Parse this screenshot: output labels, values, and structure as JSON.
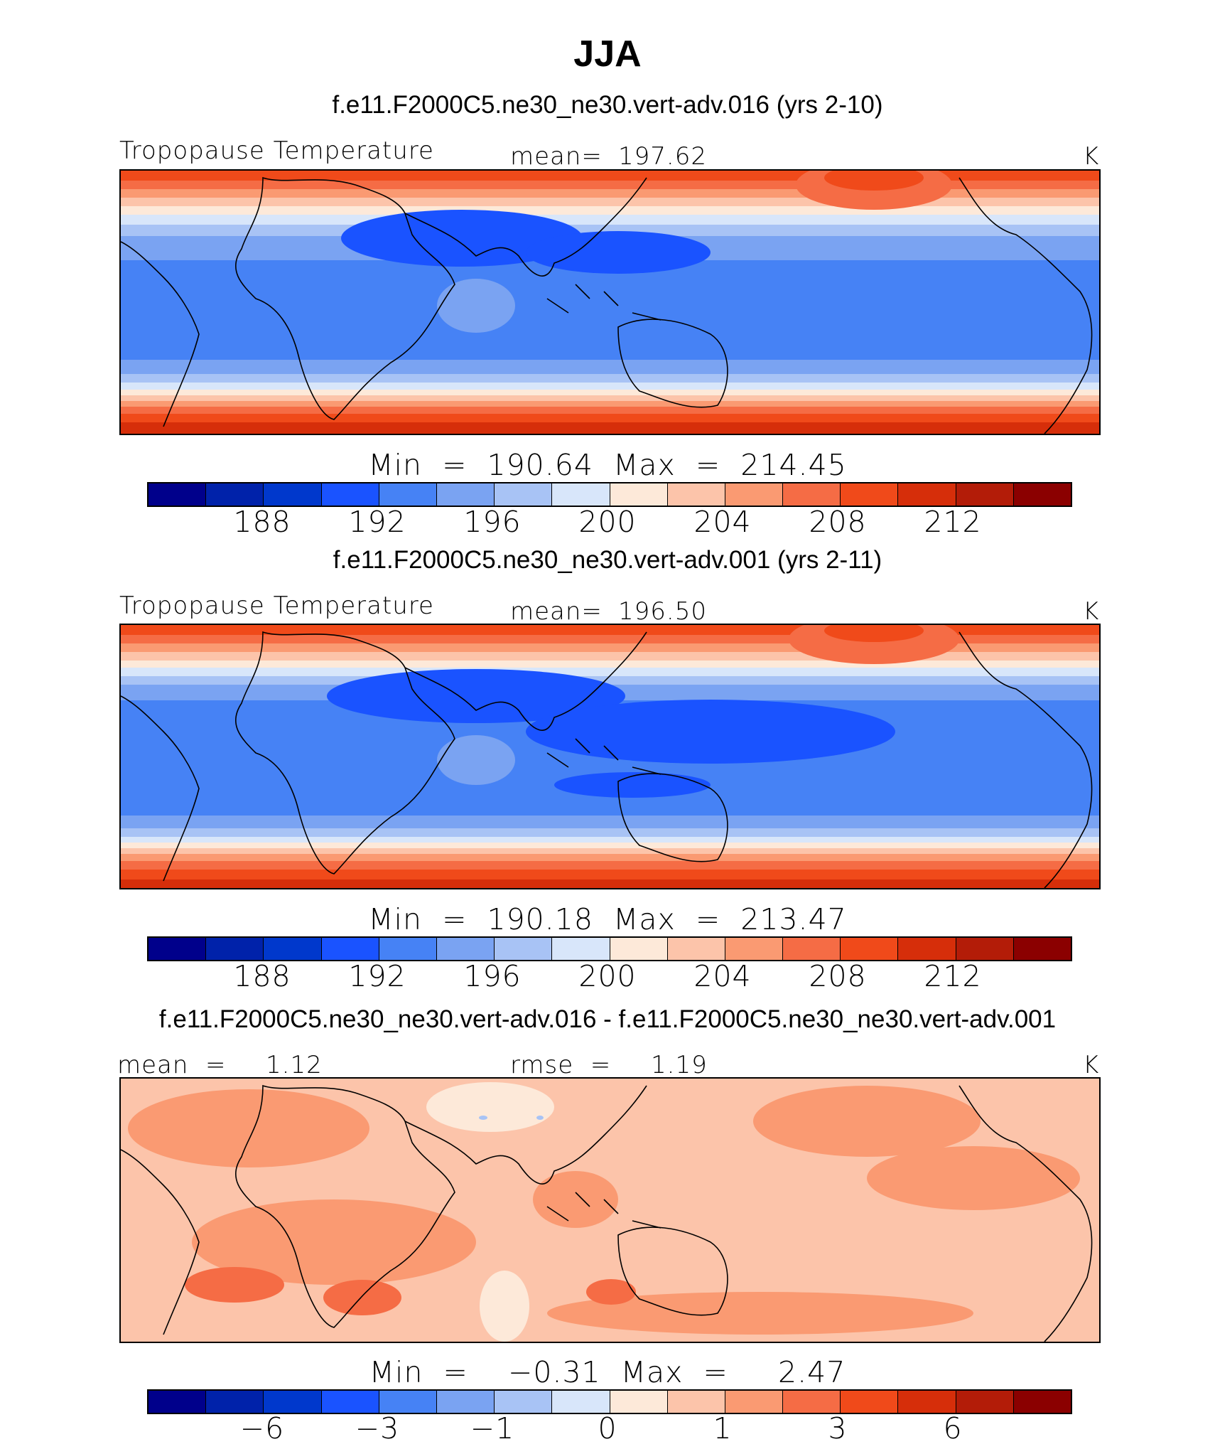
{
  "title": "JJA",
  "units": "K",
  "colorbar_colors": [
    "#00008b",
    "#0022aa",
    "#0038cc",
    "#1a53ff",
    "#4682f5",
    "#7aa3f2",
    "#a8c3f5",
    "#d8e6fa",
    "#fde9d9",
    "#fcc4aa",
    "#fa9a72",
    "#f56c45",
    "#f04a1a",
    "#d62e0a",
    "#b31c08",
    "#8b0000"
  ],
  "panels": [
    {
      "case": "f.e11.F2000C5.ne30_ne30.vert-adv.016 (yrs 2-10)",
      "variable": "Tropopause Temperature",
      "stat_label": "mean=",
      "stat_value": "197.62",
      "units": "K",
      "minmax": "Min  =  190.64  Max  =  214.45",
      "tick_labels": [
        "188",
        "192",
        "196",
        "200",
        "204",
        "208",
        "212"
      ],
      "center_contour": 194
    },
    {
      "case": "f.e11.F2000C5.ne30_ne30.vert-adv.001 (yrs 2-11)",
      "variable": "Tropopause Temperature",
      "stat_label": "mean=",
      "stat_value": "196.50",
      "units": "K",
      "minmax": "Min  =  190.18  Max  =  213.47",
      "tick_labels": [
        "188",
        "192",
        "196",
        "200",
        "204",
        "208",
        "212"
      ],
      "center_contour": 192
    },
    {
      "case": "f.e11.F2000C5.ne30_ne30.vert-adv.016 - f.e11.F2000C5.ne30_ne30.vert-adv.001",
      "left_label": "mean  =",
      "left_value": "1.12",
      "stat_label": "rmse  =",
      "stat_value": "1.19",
      "units": "K",
      "minmax": "Min  =    −0.31  Max  =     2.47",
      "tick_labels": [
        "−6",
        "−3",
        "−1",
        "0",
        "1",
        "3",
        "6"
      ]
    }
  ]
}
